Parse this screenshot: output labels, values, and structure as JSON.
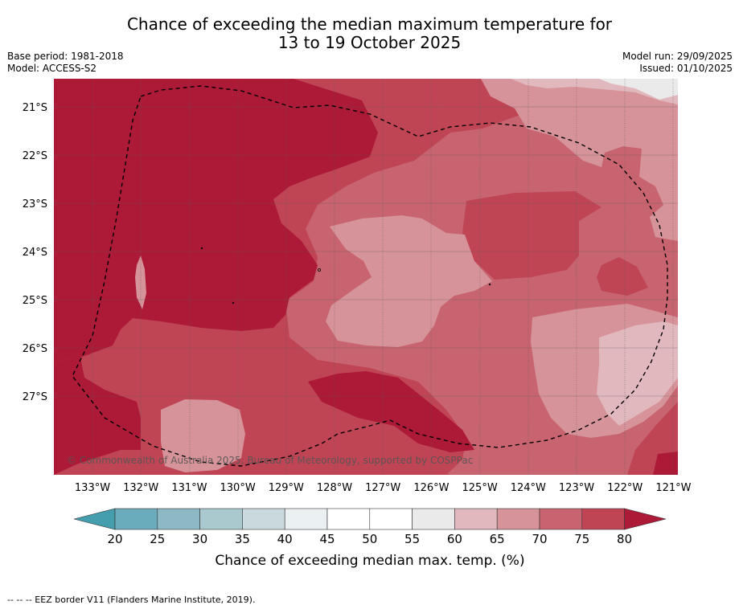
{
  "title": {
    "line1": "Chance of exceeding the median maximum temperature for",
    "line2": "13 to 19 October 2025"
  },
  "meta_left": {
    "base_period": "Base period: 1981-2018",
    "model": "Model: ACCESS-S2"
  },
  "meta_right": {
    "model_run": "Model run: 29/09/2025",
    "issued": "Issued: 01/10/2025"
  },
  "map": {
    "lat_labels": [
      "21°S",
      "22°S",
      "23°S",
      "24°S",
      "25°S",
      "26°S",
      "27°S"
    ],
    "lon_labels": [
      "133°W",
      "132°W",
      "131°W",
      "130°W",
      "129°W",
      "128°W",
      "127°W",
      "126°W",
      "125°W",
      "124°W",
      "123°W",
      "122°W",
      "121°W"
    ],
    "copyright": "© Commonwealth of Australia 2025, Bureau of Meteorology, supported by COSPPac"
  },
  "colorbar": {
    "ticks": [
      "20",
      "25",
      "30",
      "35",
      "40",
      "45",
      "50",
      "55",
      "60",
      "65",
      "70",
      "75",
      "80"
    ],
    "label": "Chance of exceeding median max. temp. (%)",
    "colors": [
      "#6aabbc",
      "#8cb9c5",
      "#aac9cf",
      "#cad9de",
      "#ebf1f3",
      "#ffffff",
      "#ffffff",
      "#ebeaea",
      "#e1b8bd",
      "#d6939a",
      "#c8646f",
      "#bf4554"
    ],
    "under_color": "#449ead",
    "over_color": "#ad1a37"
  },
  "palette": {
    "gt80": "#ad1a37",
    "c75": "#bf4554",
    "c70": "#c8646f",
    "c65": "#d6939a",
    "c60": "#e1b8bd",
    "c55": "#ebeaea"
  },
  "footnote": "-- -- -- EEZ border V11 (Flanders Marine Institute, 2019)."
}
